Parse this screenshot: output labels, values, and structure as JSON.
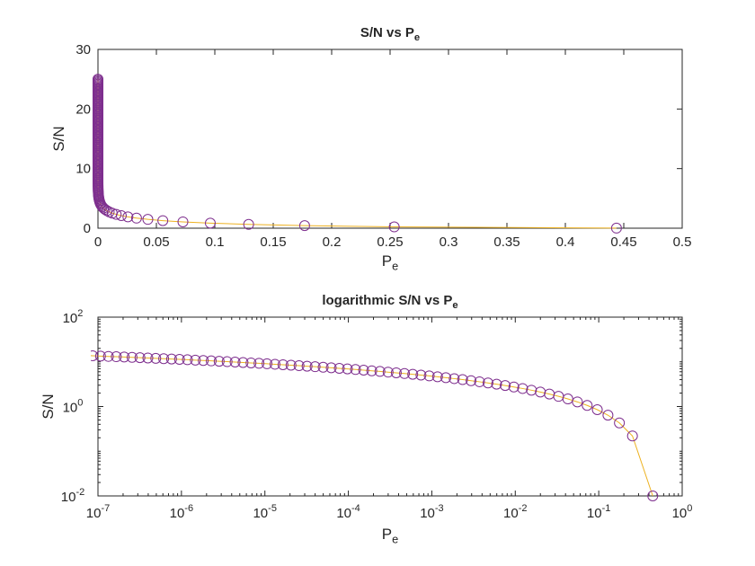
{
  "colors": {
    "line": "#EDB120",
    "marker": "#7E2F8E",
    "axis": "#262626",
    "grid": "#ffffff"
  },
  "chart_data": [
    {
      "type": "line",
      "title": "S/N vs P",
      "title_sub": "e",
      "xlabel": "P",
      "xlabel_sub": "e",
      "ylabel": "S/N",
      "xscale": "linear",
      "yscale": "linear",
      "xlim": [
        0,
        0.5
      ],
      "ylim": [
        0,
        30
      ],
      "xticks": [
        0,
        0.05,
        0.1,
        0.15,
        0.2,
        0.25,
        0.3,
        0.35,
        0.4,
        0.45,
        0.5
      ],
      "xtick_labels": [
        "0",
        "0.05",
        "0.1",
        "0.15",
        "0.2",
        "0.25",
        "0.3",
        "0.35",
        "0.4",
        "0.45",
        "0.5"
      ],
      "yticks": [
        0,
        10,
        20,
        30
      ],
      "ytick_labels": [
        "0",
        "10",
        "20",
        "30"
      ],
      "grid": false,
      "legend": false,
      "series": [
        {
          "marker": "circle",
          "y_function": "sqrt_inverse_erfc",
          "y_min": 0.01,
          "y_max": 25,
          "n": 120,
          "spacing": "linear"
        }
      ]
    },
    {
      "type": "line",
      "title": "logarithmic S/N vs P",
      "title_sub": "e",
      "xlabel": "P",
      "xlabel_sub": "e",
      "ylabel": "S/N",
      "xscale": "log",
      "yscale": "log",
      "xlim": [
        1e-07,
        1
      ],
      "ylim": [
        0.01,
        100
      ],
      "xticks": [
        1e-07,
        1e-06,
        1e-05,
        0.0001,
        0.001,
        0.01,
        0.1,
        1
      ],
      "xtick_labels": [
        [
          "10",
          "-7"
        ],
        [
          "10",
          "-6"
        ],
        [
          "10",
          "-5"
        ],
        [
          "10",
          "-4"
        ],
        [
          "10",
          "-3"
        ],
        [
          "10",
          "-2"
        ],
        [
          "10",
          "-1"
        ],
        [
          "10",
          "0"
        ]
      ],
      "yticks": [
        0.01,
        1,
        100
      ],
      "ytick_labels": [
        [
          "10",
          "-2"
        ],
        [
          "10",
          "0"
        ],
        [
          "10",
          "2"
        ]
      ],
      "grid": false,
      "legend": false,
      "series": [
        {
          "marker": "circle",
          "y_function": "sqrt_inverse_erfc",
          "y_min": 0.01,
          "y_max": 25,
          "n": 120,
          "spacing": "linear"
        }
      ]
    }
  ]
}
